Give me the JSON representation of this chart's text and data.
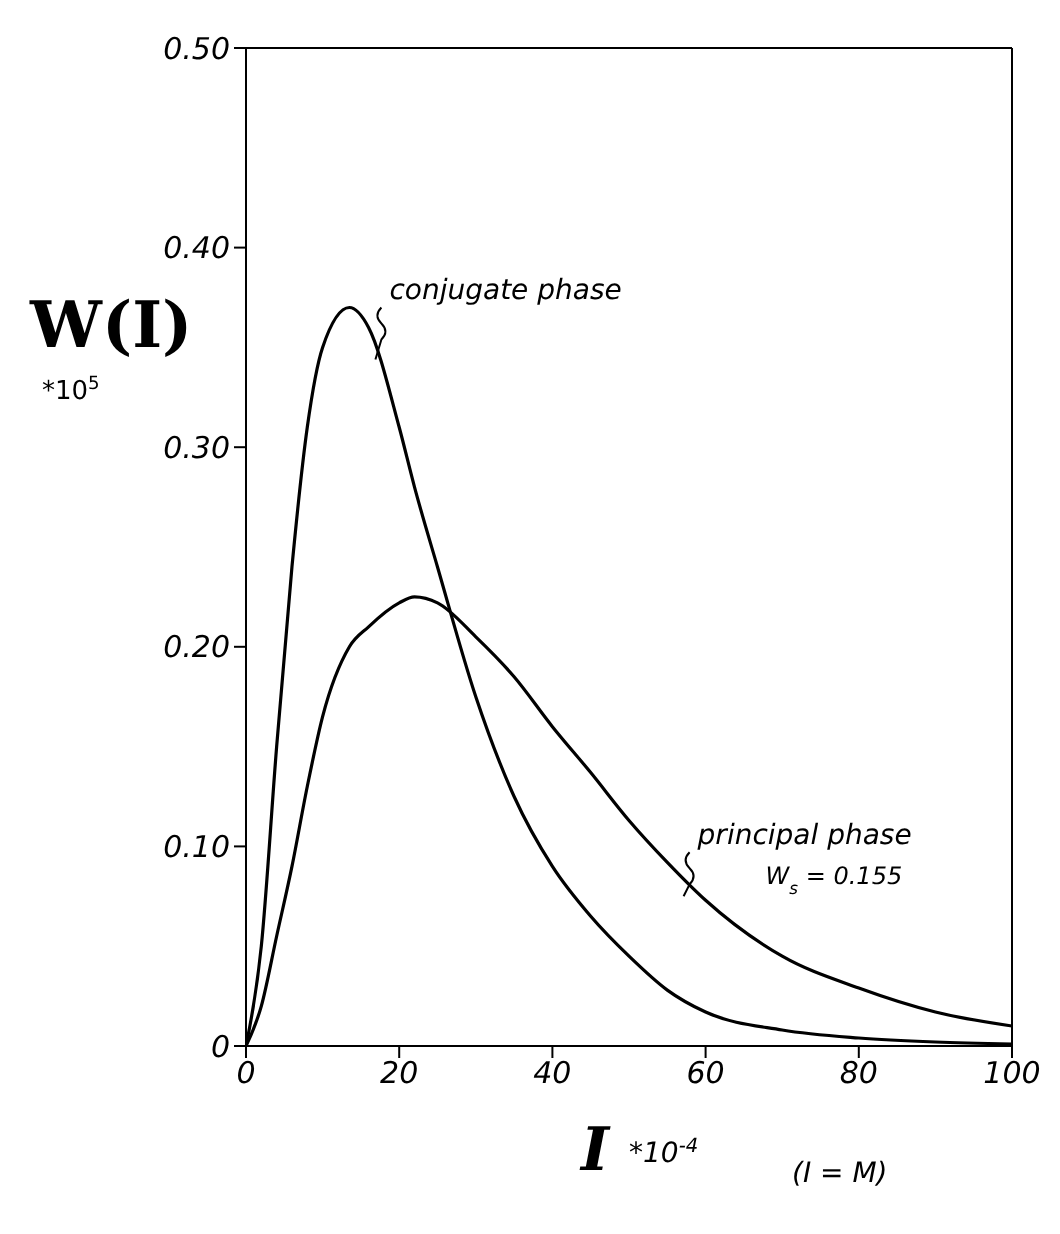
{
  "chart_data": {
    "type": "line",
    "xlabel": "I *10$^{-4}$",
    "ylabel": "W(I) *10$^{5}$",
    "x": [
      0,
      2,
      4,
      6,
      8,
      10,
      13.5,
      16,
      20,
      22,
      25,
      30,
      35,
      40,
      45,
      50,
      55,
      60,
      70,
      80,
      90,
      100
    ],
    "series": [
      {
        "name": "conjugate phase",
        "color": "#000000",
        "values": [
          0,
          0.05,
          0.15,
          0.24,
          0.31,
          0.35,
          0.37,
          0.36,
          0.31,
          0.28,
          0.24,
          0.175,
          0.125,
          0.09,
          0.065,
          0.045,
          0.028,
          0.017,
          0.008,
          0.004,
          0.002,
          0.001
        ]
      },
      {
        "name": "principal phase",
        "color": "#000000",
        "values": [
          0,
          0.02,
          0.055,
          0.09,
          0.13,
          0.165,
          0.2,
          0.21,
          0.222,
          0.225,
          0.222,
          0.205,
          0.185,
          0.16,
          0.137,
          0.113,
          0.092,
          0.073,
          0.045,
          0.029,
          0.017,
          0.01
        ]
      }
    ],
    "annotations": [
      "W$_{s}$ = 0.155",
      "(I = M)"
    ],
    "xlim": [
      0,
      100
    ],
    "xticks": [
      0,
      20,
      40,
      60,
      80,
      100
    ],
    "ylim": [
      0,
      0.5
    ],
    "yticks": [
      {
        "value": 0,
        "label": "0"
      },
      {
        "value": 0.1,
        "label": "0.10"
      },
      {
        "value": 0.2,
        "label": "0.20"
      },
      {
        "value": 0.3,
        "label": "0.30"
      },
      {
        "value": 0.4,
        "label": "0.40"
      },
      {
        "value": 0.5,
        "label": "0.50"
      }
    ],
    "grid": false,
    "legend": false,
    "marker": "none",
    "line_style": "solid"
  }
}
